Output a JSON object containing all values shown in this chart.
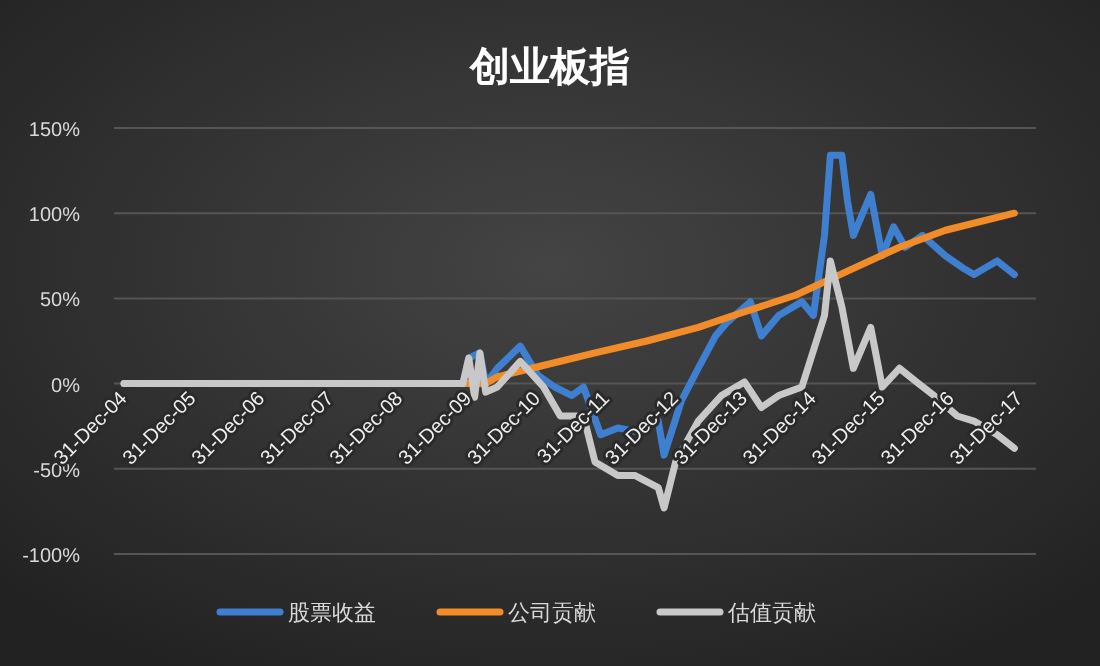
{
  "chart_data": {
    "type": "line",
    "title": "创业板指",
    "xlim": [
      "2004-12-31",
      "2017-12-31"
    ],
    "xticks": [
      {
        "value": "2004-12-31",
        "label": "31-Dec-04"
      },
      {
        "value": "2005-12-31",
        "label": "31-Dec-05"
      },
      {
        "value": "2006-12-31",
        "label": "31-Dec-06"
      },
      {
        "value": "2007-12-31",
        "label": "31-Dec-07"
      },
      {
        "value": "2008-12-31",
        "label": "31-Dec-08"
      },
      {
        "value": "2009-12-31",
        "label": "31-Dec-09"
      },
      {
        "value": "2010-12-31",
        "label": "31-Dec-10"
      },
      {
        "value": "2011-12-31",
        "label": "31-Dec-11"
      },
      {
        "value": "2012-12-31",
        "label": "31-Dec-12"
      },
      {
        "value": "2013-12-31",
        "label": "31-Dec-13"
      },
      {
        "value": "2014-12-31",
        "label": "31-Dec-14"
      },
      {
        "value": "2015-12-31",
        "label": "31-Dec-15"
      },
      {
        "value": "2016-12-31",
        "label": "31-Dec-16"
      },
      {
        "value": "2017-12-31",
        "label": "31-Dec-17"
      }
    ],
    "ylim": [
      -100,
      150
    ],
    "yticks": [
      {
        "value": -100,
        "label": "-100%"
      },
      {
        "value": -50,
        "label": "-50%"
      },
      {
        "value": 0,
        "label": "0%"
      },
      {
        "value": 50,
        "label": "50%"
      },
      {
        "value": 100,
        "label": "100%"
      },
      {
        "value": 150,
        "label": "150%"
      }
    ],
    "grid": "y",
    "legend": "bottom",
    "marker": "none",
    "line_style": "solid",
    "series": [
      {
        "name": "股票收益",
        "color": "#3f7fcf",
        "x": [
          "2004-12-31",
          "2009-12",
          "2010-01",
          "2010-03",
          "2010-04",
          "2010-06",
          "2010-10",
          "2011-01",
          "2011-04",
          "2011-07",
          "2011-09",
          "2011-12",
          "2012-03",
          "2012-06",
          "2012-10",
          "2012-11",
          "2013-02",
          "2013-05",
          "2013-08",
          "2013-10",
          "2014-02",
          "2014-04",
          "2014-07",
          "2014-11",
          "2015-01",
          "2015-03",
          "2015-04",
          "2015-06",
          "2015-07",
          "2015-08",
          "2015-11",
          "2016-01",
          "2016-03",
          "2016-05",
          "2016-08",
          "2016-12",
          "2017-03",
          "2017-05",
          "2017-09",
          "2017-12"
        ],
        "values": [
          0,
          0,
          15,
          18,
          0,
          9,
          22,
          5,
          -2,
          -7,
          -2,
          -30,
          -26,
          -28,
          -22,
          -42,
          -10,
          9,
          28,
          36,
          48,
          28,
          40,
          48,
          40,
          87,
          134,
          134,
          107,
          87,
          111,
          75,
          92,
          80,
          87,
          75,
          68,
          64,
          72,
          64
        ]
      },
      {
        "name": "公司贡献",
        "color": "#f28c28",
        "x": [
          "2004-12-31",
          "2010-04",
          "2010-06",
          "2010-12",
          "2011-11",
          "2012-08",
          "2013-05",
          "2013-12",
          "2014-10",
          "2015-07",
          "2016-04",
          "2016-12",
          "2017-12"
        ],
        "values": [
          0,
          0,
          4,
          9,
          18,
          25,
          33,
          41,
          52,
          66,
          80,
          90,
          100
        ]
      },
      {
        "name": "估值贡献",
        "color": "#c8c8c8",
        "x": [
          "2004-12-31",
          "2009-12",
          "2010-01",
          "2010-02",
          "2010-03",
          "2010-04",
          "2010-06",
          "2010-10",
          "2011-02",
          "2011-05",
          "2011-09",
          "2011-11",
          "2012-03",
          "2012-06",
          "2012-10",
          "2012-11",
          "2013-01",
          "2013-05",
          "2013-09",
          "2014-01",
          "2014-04",
          "2014-07",
          "2014-11",
          "2015-03",
          "2015-04",
          "2015-06",
          "2015-08",
          "2015-11",
          "2016-01",
          "2016-04",
          "2016-07",
          "2016-10",
          "2017-02",
          "2017-05",
          "2017-09",
          "2017-12"
        ],
        "values": [
          0,
          0,
          15,
          -8,
          18,
          -5,
          -2,
          13,
          -2,
          -19,
          -19,
          -46,
          -54,
          -54,
          -61,
          -73,
          -46,
          -22,
          -7,
          1,
          -14,
          -7,
          -2,
          40,
          72,
          45,
          9,
          33,
          -2,
          9,
          1,
          -7,
          -19,
          -22,
          -30,
          -38
        ]
      }
    ]
  }
}
